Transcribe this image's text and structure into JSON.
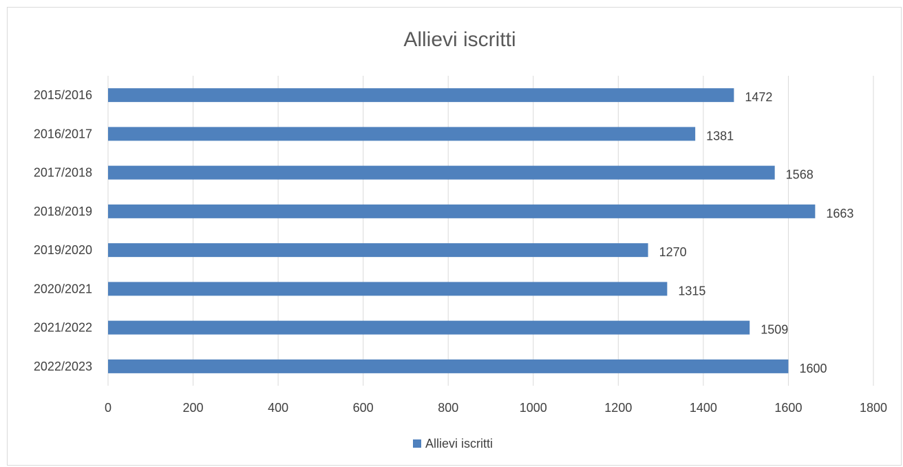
{
  "chart_data": {
    "type": "bar",
    "orientation": "horizontal",
    "title": "Allievi iscritti",
    "categories": [
      "2015/2016",
      "2016/2017",
      "2017/2018",
      "2018/2019",
      "2019/2020",
      "2020/2021",
      "2021/2022",
      "2022/2023"
    ],
    "series": [
      {
        "name": "Allievi iscritti",
        "values": [
          1472,
          1381,
          1568,
          1663,
          1270,
          1315,
          1509,
          1600
        ],
        "color": "#4f81bd"
      }
    ],
    "xlim": [
      0,
      1800
    ],
    "xticks": [
      "0",
      "200",
      "400",
      "600",
      "800",
      "1000",
      "1200",
      "1400",
      "1600",
      "1800"
    ],
    "grid": true,
    "data_labels": true,
    "legend_position": "bottom"
  }
}
